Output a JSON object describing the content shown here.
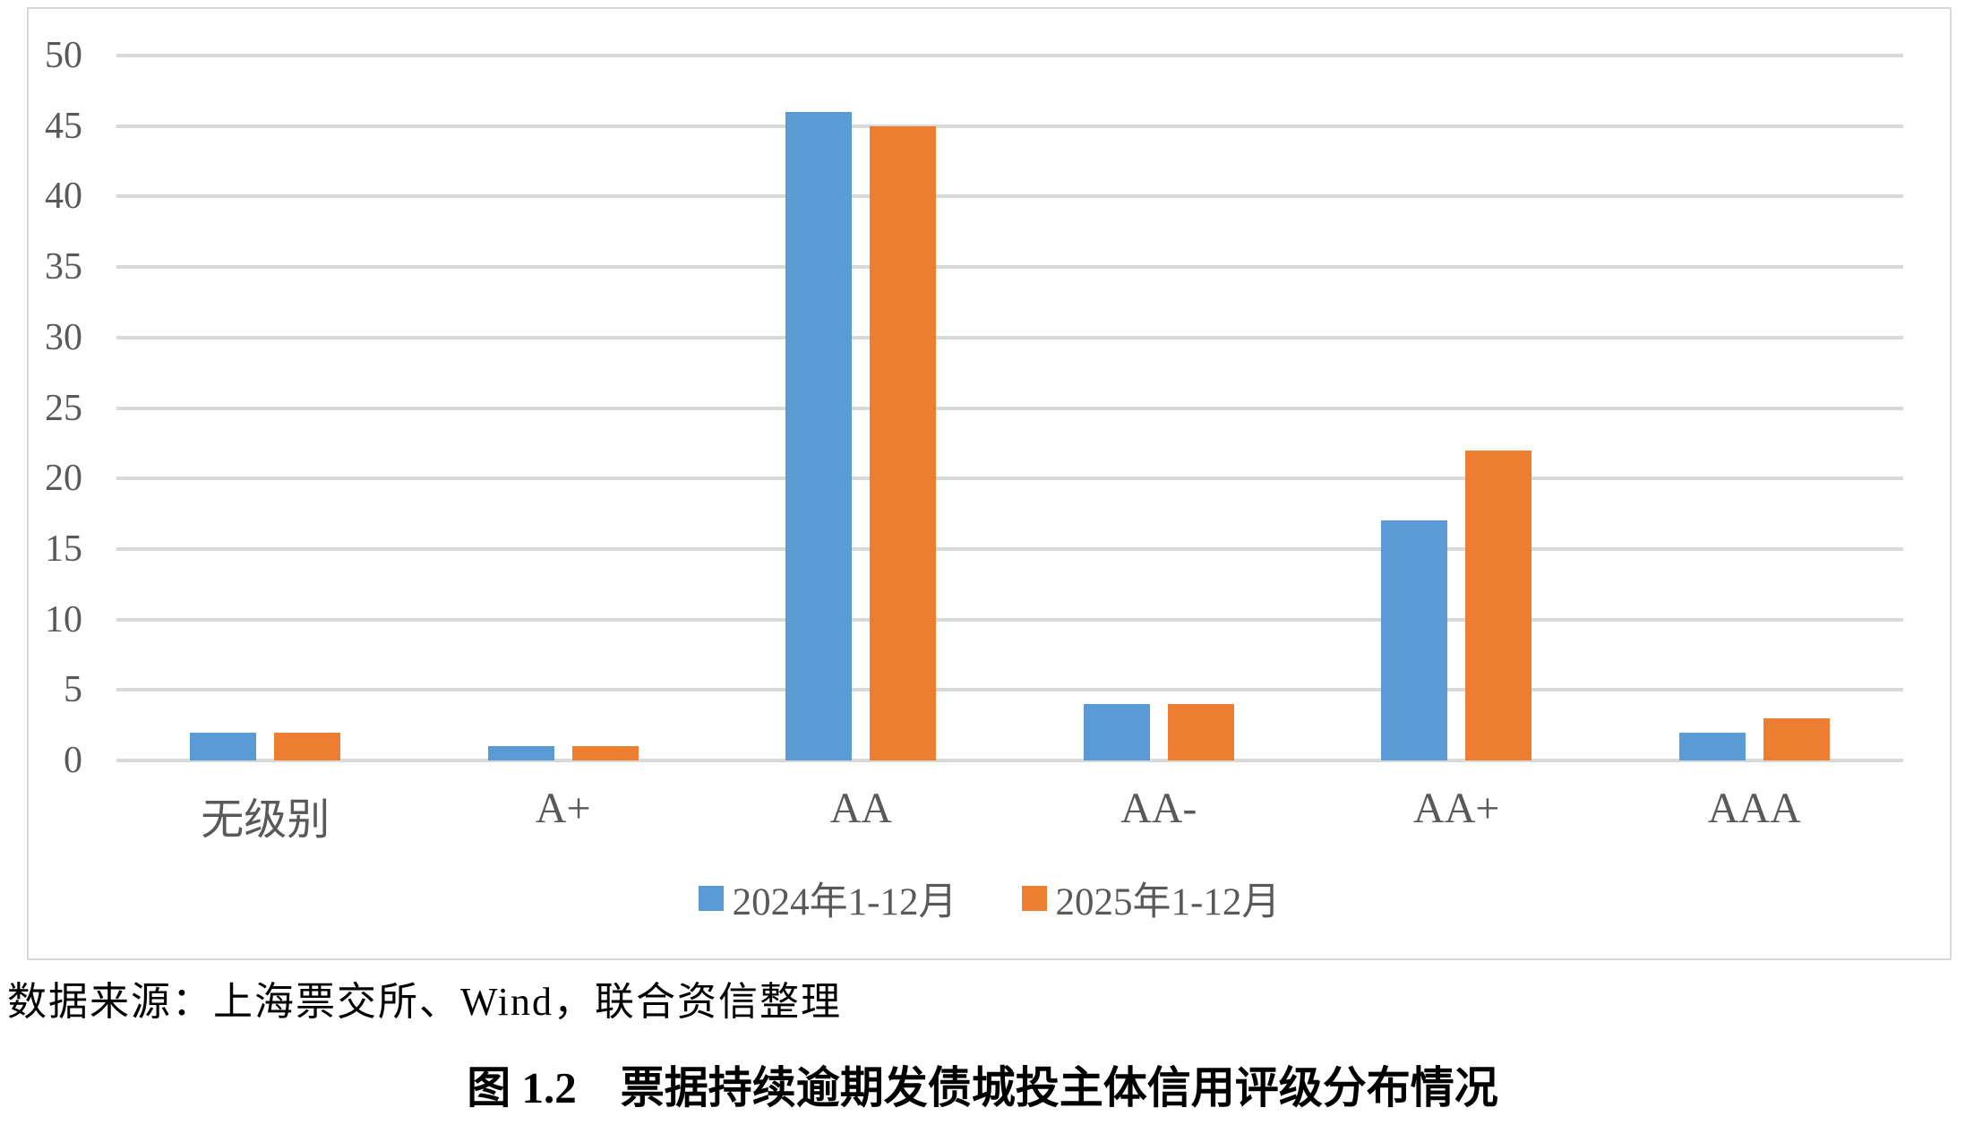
{
  "chart_data": {
    "type": "bar",
    "categories": [
      "无级别",
      "A+",
      "AA",
      "AA-",
      "AA+",
      "AAA"
    ],
    "series": [
      {
        "name": "2024年1-12月",
        "color": "#5B9BD5",
        "values": [
          2,
          1,
          46,
          4,
          17,
          2
        ]
      },
      {
        "name": "2025年1-12月",
        "color": "#ED7D31",
        "values": [
          2,
          1,
          45,
          4,
          22,
          3
        ]
      }
    ],
    "title": "",
    "xlabel": "",
    "ylabel": "",
    "ylim": [
      0,
      50
    ],
    "ytick_step": 5,
    "grid": "horizontal",
    "legend_position": "bottom"
  },
  "colors": {
    "series_2024": "#5B9BD5",
    "series_2025": "#ED7D31",
    "axis_text": "#595959",
    "gridline": "#D9D9D9",
    "frame_border": "#D9D9D9"
  },
  "source_note": "数据来源：上海票交所、Wind，联合资信整理",
  "caption": "图 1.2　票据持续逾期发债城投主体信用评级分布情况"
}
